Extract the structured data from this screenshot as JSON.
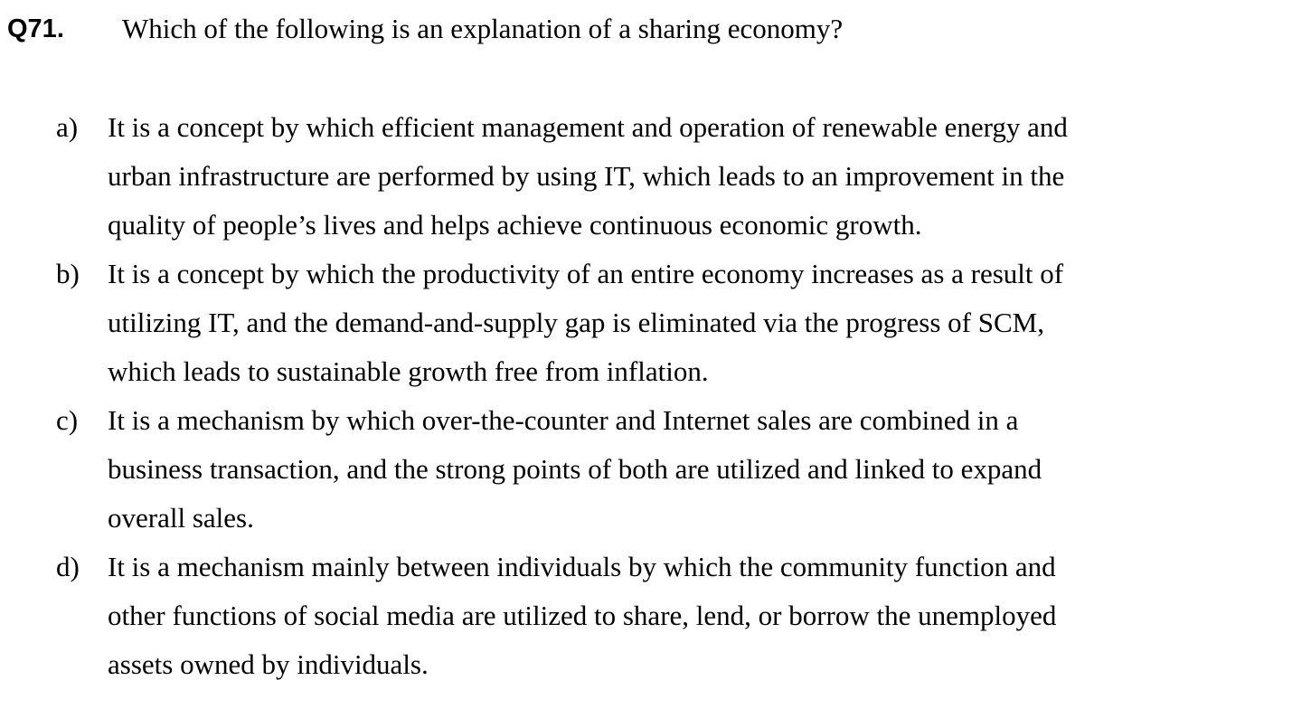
{
  "question": {
    "number": "Q71.",
    "text": "Which of the following is an explanation of a sharing economy?"
  },
  "options": [
    {
      "letter": "a)",
      "lines": [
        "It is a concept by which efficient management and operation of renewable energy and",
        "urban infrastructure are performed by using IT, which leads to an improvement in the",
        "quality of people’s lives and helps achieve continuous economic growth."
      ]
    },
    {
      "letter": "b)",
      "lines": [
        "It is a concept by which the productivity of an entire economy increases as a result of",
        "utilizing IT, and the demand-and-supply gap is eliminated via the progress of SCM,",
        "which leads to sustainable growth free from inflation."
      ]
    },
    {
      "letter": "c)",
      "lines": [
        "It is a mechanism by which over-the-counter and Internet sales are combined in a",
        "business transaction, and the strong points of both are utilized and linked to expand",
        "overall sales."
      ]
    },
    {
      "letter": "d)",
      "lines": [
        "It is a mechanism mainly between individuals by which the community function and",
        "other functions of social media are utilized to share, lend, or borrow the unemployed",
        "assets owned by individuals."
      ]
    }
  ]
}
